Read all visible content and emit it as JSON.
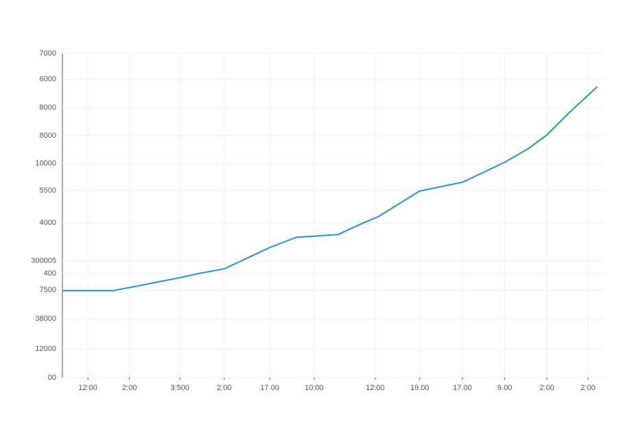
{
  "chart_data": {
    "type": "line",
    "x": [
      0,
      4.7,
      9.4,
      13.9,
      21.7,
      25.2,
      29.9,
      34.1,
      38.3,
      43.2,
      50.9,
      54.6,
      58.4,
      66.0,
      73.9,
      77.2,
      81.7,
      86.0,
      89.5,
      93.7,
      98.8
    ],
    "series": [
      {
        "color": "#3a97c4",
        "values": [
          1880,
          1880,
          1880,
          1980,
          2160,
          2250,
          2350,
          2580,
          2810,
          3030,
          3090,
          3290,
          3480,
          4030,
          4220,
          4400,
          4650,
          4940,
          5240,
          5730,
          6280
        ]
      }
    ],
    "xlim": [
      0,
      100
    ],
    "xticks": [
      {
        "value": 4.7,
        "label": "12:00"
      },
      {
        "value": 12.4,
        "label": "2:00"
      },
      {
        "value": 21.7,
        "label": "3:500"
      },
      {
        "value": 29.9,
        "label": "2:00"
      },
      {
        "value": 38.3,
        "label": "17.00"
      },
      {
        "value": 46.5,
        "label": "10:00"
      },
      {
        "value": 57.8,
        "label": "12:00"
      },
      {
        "value": 66.0,
        "label": "19.00"
      },
      {
        "value": 73.9,
        "label": "17.00"
      },
      {
        "value": 81.7,
        "label": "9.00"
      },
      {
        "value": 89.5,
        "label": "2:00"
      },
      {
        "value": 97.1,
        "label": "2:00"
      }
    ],
    "ylim": [
      0,
      7000
    ],
    "yticks": [
      7000,
      {
        "value": 6440,
        "label": "6000"
      },
      {
        "value": 5830,
        "label": "8000"
      },
      {
        "value": 5220,
        "label": "8000"
      },
      {
        "value": 4620,
        "label": "10000"
      },
      {
        "value": 4040,
        "label": "5500"
      },
      {
        "value": 3340,
        "label": "4000"
      },
      {
        "value": 2520,
        "label": "300005"
      },
      {
        "value": 2250,
        "label": "400"
      },
      {
        "value": 1890,
        "label": "7500"
      },
      {
        "value": 1270,
        "label": "38000"
      },
      {
        "value": 620,
        "label": "12000"
      },
      {
        "value": 0,
        "label": "00"
      }
    ],
    "grid": true
  }
}
